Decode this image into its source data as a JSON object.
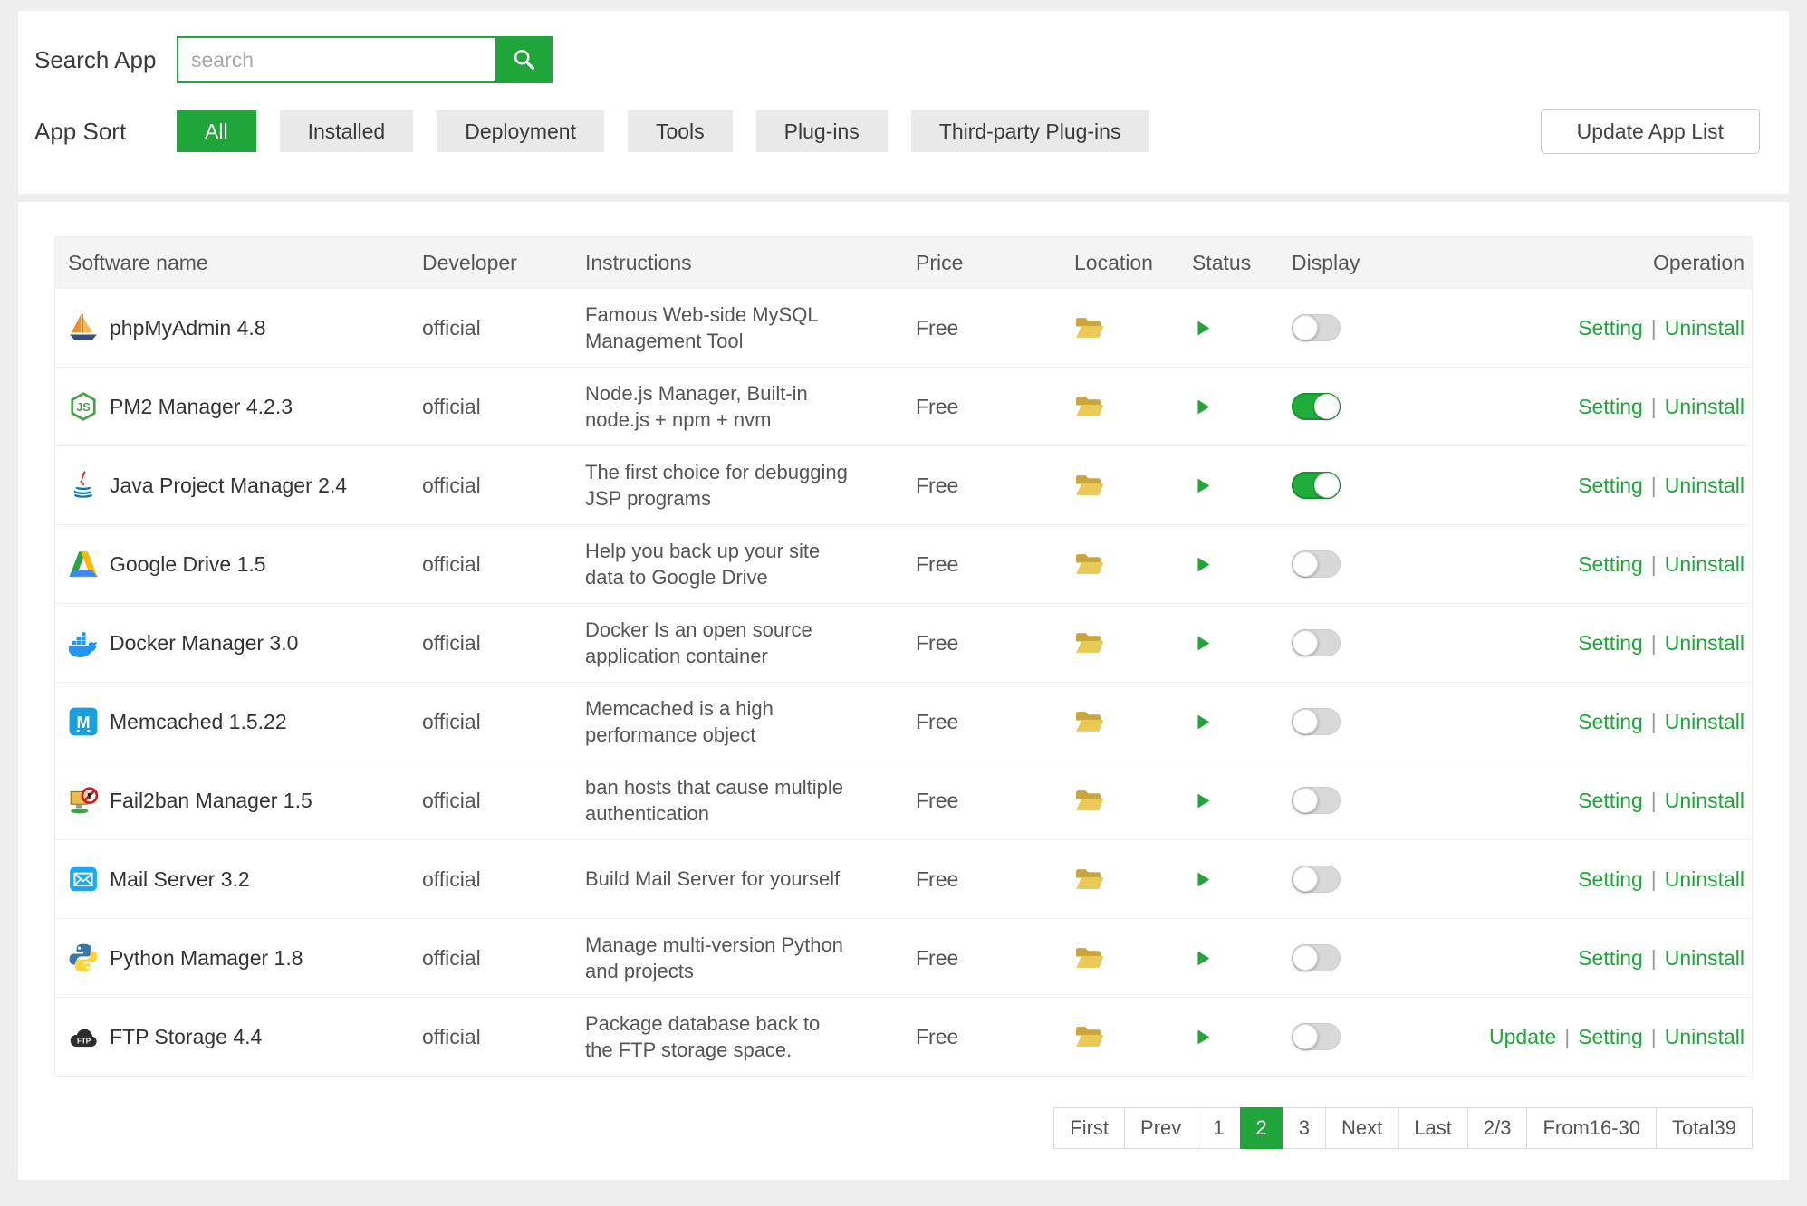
{
  "colors": {
    "accent": "#20a53a",
    "toggle_on": "#21ad3c",
    "folder": "#e9ca57"
  },
  "search": {
    "label": "Search App",
    "placeholder": "search"
  },
  "sort": {
    "label": "App Sort",
    "buttons": [
      {
        "label": "All",
        "active": true
      },
      {
        "label": "Installed",
        "active": false
      },
      {
        "label": "Deployment",
        "active": false
      },
      {
        "label": "Tools",
        "active": false
      },
      {
        "label": "Plug-ins",
        "active": false
      },
      {
        "label": "Third-party Plug-ins",
        "active": false
      }
    ],
    "update_button": "Update App List"
  },
  "table": {
    "headers": [
      "Software name",
      "Developer",
      "Instructions",
      "Price",
      "Location",
      "Status",
      "Display",
      "Operation"
    ],
    "rows": [
      {
        "icon": "phpmyadmin-icon",
        "name": "phpMyAdmin 4.8",
        "developer": "official",
        "instructions": "Famous Web-side MySQL Management Tool",
        "price": "Free",
        "display_on": false,
        "operations": [
          "Setting",
          "Uninstall"
        ]
      },
      {
        "icon": "nodejs-icon",
        "name": "PM2 Manager 4.2.3",
        "developer": "official",
        "instructions": "Node.js Manager, Built-in node.js + npm + nvm",
        "price": "Free",
        "display_on": true,
        "operations": [
          "Setting",
          "Uninstall"
        ]
      },
      {
        "icon": "java-icon",
        "name": "Java Project Manager 2.4",
        "developer": "official",
        "instructions": "The first choice for debugging JSP programs",
        "price": "Free",
        "display_on": true,
        "operations": [
          "Setting",
          "Uninstall"
        ]
      },
      {
        "icon": "gdrive-icon",
        "name": "Google Drive 1.5",
        "developer": "official",
        "instructions": "Help you back up your site data to Google Drive",
        "price": "Free",
        "display_on": false,
        "operations": [
          "Setting",
          "Uninstall"
        ]
      },
      {
        "icon": "docker-icon",
        "name": "Docker Manager 3.0",
        "developer": "official",
        "instructions": "Docker Is an open source application container",
        "price": "Free",
        "display_on": false,
        "operations": [
          "Setting",
          "Uninstall"
        ]
      },
      {
        "icon": "memcached-icon",
        "name": "Memcached 1.5.22",
        "developer": "official",
        "instructions": "Memcached is a high performance object",
        "price": "Free",
        "display_on": false,
        "operations": [
          "Setting",
          "Uninstall"
        ]
      },
      {
        "icon": "fail2ban-icon",
        "name": "Fail2ban Manager 1.5",
        "developer": "official",
        "instructions": "ban hosts that cause multiple authentication",
        "price": "Free",
        "display_on": false,
        "operations": [
          "Setting",
          "Uninstall"
        ]
      },
      {
        "icon": "mailserver-icon",
        "name": "Mail Server 3.2",
        "developer": "official",
        "instructions": "Build Mail Server for yourself",
        "price": "Free",
        "display_on": false,
        "operations": [
          "Setting",
          "Uninstall"
        ]
      },
      {
        "icon": "python-icon",
        "name": "Python Mamager 1.8",
        "developer": "official",
        "instructions": "Manage multi-version Python and projects",
        "price": "Free",
        "display_on": false,
        "operations": [
          "Setting",
          "Uninstall"
        ]
      },
      {
        "icon": "ftp-icon",
        "name": "FTP Storage 4.4",
        "developer": "official",
        "instructions": "Package database back to the FTP storage space.",
        "price": "Free",
        "display_on": false,
        "operations": [
          "Update",
          "Setting",
          "Uninstall"
        ]
      }
    ]
  },
  "pagination": {
    "items": [
      {
        "label": "First",
        "active": false,
        "clickable": true
      },
      {
        "label": "Prev",
        "active": false,
        "clickable": true
      },
      {
        "label": "1",
        "active": false,
        "clickable": true
      },
      {
        "label": "2",
        "active": true,
        "clickable": true
      },
      {
        "label": "3",
        "active": false,
        "clickable": true
      },
      {
        "label": "Next",
        "active": false,
        "clickable": true
      },
      {
        "label": "Last",
        "active": false,
        "clickable": true
      },
      {
        "label": "2/3",
        "active": false,
        "clickable": false
      },
      {
        "label": "From16-30",
        "active": false,
        "clickable": false
      },
      {
        "label": "Total39",
        "active": false,
        "clickable": false
      }
    ]
  }
}
